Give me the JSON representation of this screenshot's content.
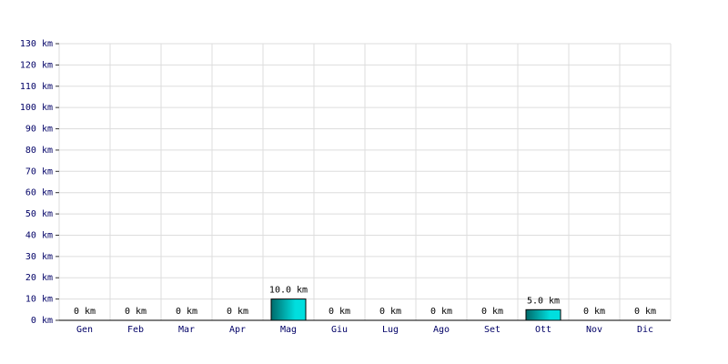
{
  "chart_data": {
    "type": "bar",
    "categories": [
      "Gen",
      "Feb",
      "Mar",
      "Apr",
      "Mag",
      "Giu",
      "Lug",
      "Ago",
      "Set",
      "Ott",
      "Nov",
      "Dic"
    ],
    "values": [
      0,
      0,
      0,
      0,
      10,
      0,
      0,
      0,
      0,
      5,
      0,
      0
    ],
    "value_labels": [
      "0 km",
      "0 km",
      "0 km",
      "0 km",
      "10.0 km",
      "0 km",
      "0 km",
      "0 km",
      "0 km",
      "5.0 km",
      "0 km",
      "0 km"
    ],
    "color": "#00dede",
    "ylim": [
      0,
      130
    ],
    "yticks": [
      {
        "value": 0,
        "label": "0 km"
      },
      {
        "value": 10,
        "label": "10 km"
      },
      {
        "value": 20,
        "label": "20 km"
      },
      {
        "value": 30,
        "label": "30 km"
      },
      {
        "value": 40,
        "label": "40 km"
      },
      {
        "value": 50,
        "label": "50 km"
      },
      {
        "value": 60,
        "label": "60 km"
      },
      {
        "value": 70,
        "label": "70 km"
      },
      {
        "value": 80,
        "label": "80 km"
      },
      {
        "value": 90,
        "label": "90 km"
      },
      {
        "value": 100,
        "label": "100 km"
      },
      {
        "value": 110,
        "label": "110 km"
      },
      {
        "value": 120,
        "label": "120 km"
      },
      {
        "value": 130,
        "label": "130 km"
      }
    ],
    "grid": true
  }
}
